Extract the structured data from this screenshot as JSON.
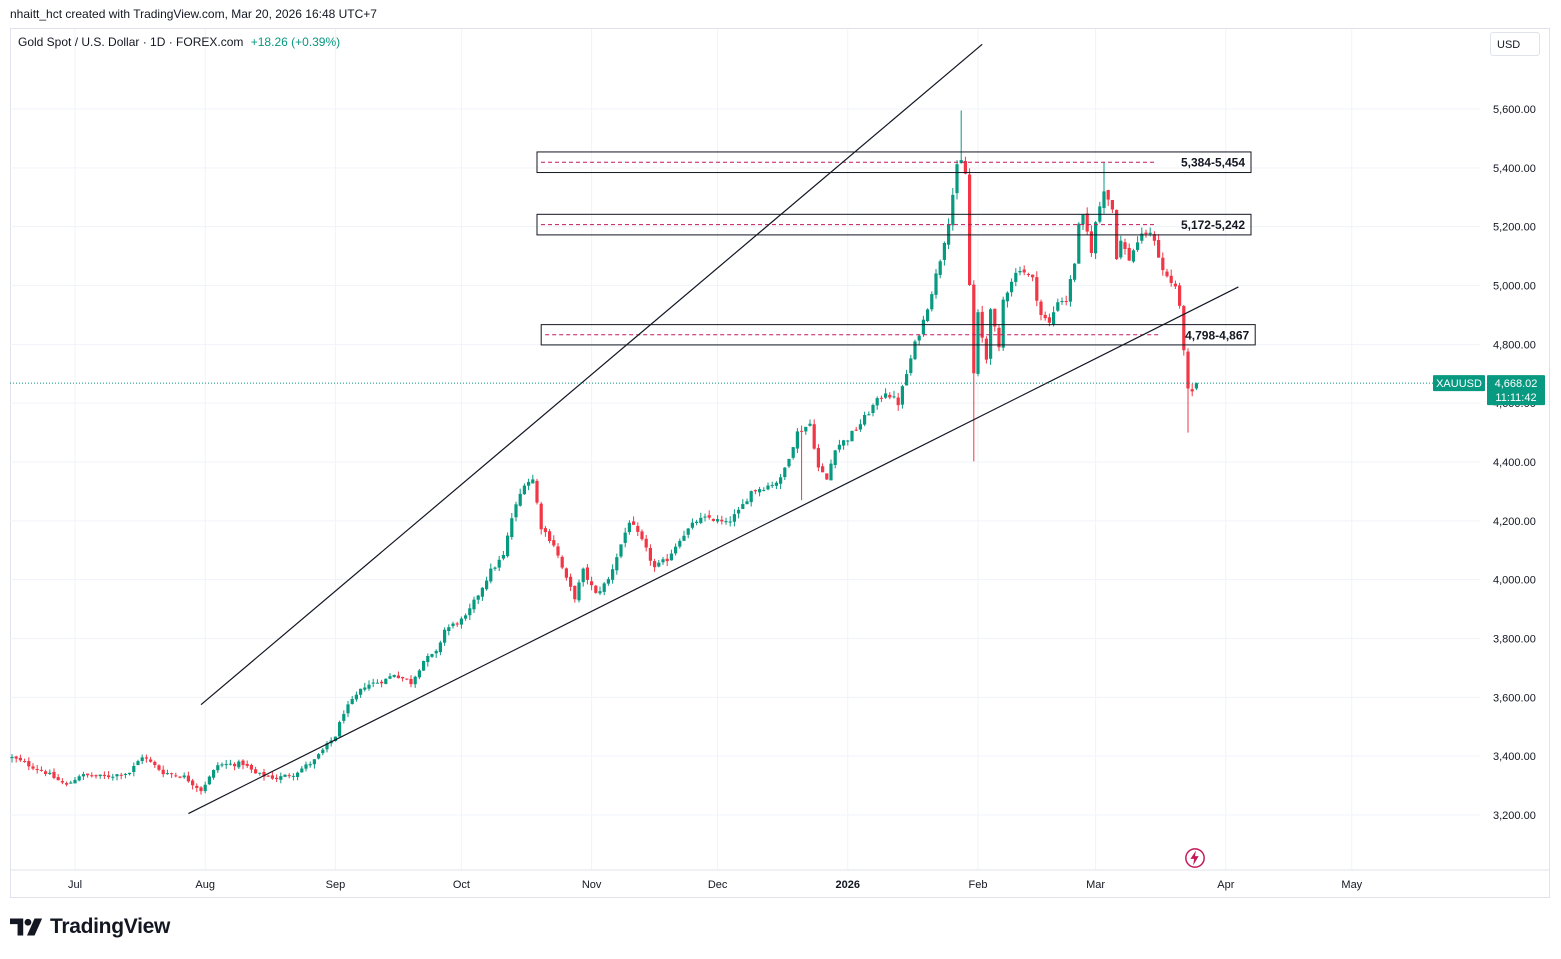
{
  "attribution": "nhaitt_hct created with TradingView.com, Mar 20, 2026 16:48 UTC+7",
  "legend": {
    "symbol_desc": "Gold Spot / U.S. Dollar · 1D · FOREX.com",
    "change": "+18.26 (+0.39%)"
  },
  "currency_label": "USD",
  "brand": {
    "name": "TradingView"
  },
  "icons": {
    "brand_mark": "tradingview-logo-icon",
    "bolt": "lightning-bolt-icon"
  },
  "colors": {
    "up": "#089981",
    "down": "#F23645",
    "grid": "#F0F3FA",
    "line": "#131722",
    "zone_dash": "#C2185B"
  },
  "chart_data": {
    "type": "candlestick",
    "title": "Gold Spot / U.S. Dollar · 1D · FOREX.com",
    "ylabel": "USD",
    "ylim": [
      3060,
      5830
    ],
    "y_ticks": [
      3200,
      3400,
      3600,
      3800,
      4000,
      4200,
      4400,
      4600,
      4800,
      5000,
      5200,
      5400,
      5600
    ],
    "y_tick_labels": [
      "3,200.00",
      "3,400.00",
      "3,600.00",
      "3,800.00",
      "4,000.00",
      "4,200.00",
      "4,400.00",
      "4,600.00",
      "4,800.00",
      "5,000.00",
      "5,200.00",
      "5,400.00",
      "5,600.00"
    ],
    "x_range_days": [
      0,
      336
    ],
    "x_ticks": [
      {
        "label": "Jul",
        "day": 15
      },
      {
        "label": "Aug",
        "day": 46
      },
      {
        "label": "Sep",
        "day": 77
      },
      {
        "label": "Oct",
        "day": 107
      },
      {
        "label": "Nov",
        "day": 138
      },
      {
        "label": "Dec",
        "day": 168
      },
      {
        "label": "2026",
        "day": 199,
        "bold": true
      },
      {
        "label": "Feb",
        "day": 230
      },
      {
        "label": "Mar",
        "day": 258
      },
      {
        "label": "Apr",
        "day": 289
      },
      {
        "label": "May",
        "day": 319
      }
    ],
    "anchors": [
      [
        0,
        3395
      ],
      [
        8,
        3345
      ],
      [
        13,
        3300
      ],
      [
        16,
        3335
      ],
      [
        22,
        3330
      ],
      [
        28,
        3345
      ],
      [
        31,
        3400
      ],
      [
        36,
        3345
      ],
      [
        41,
        3330
      ],
      [
        45,
        3285
      ],
      [
        49,
        3370
      ],
      [
        55,
        3375
      ],
      [
        58,
        3340
      ],
      [
        63,
        3325
      ],
      [
        67,
        3340
      ],
      [
        72,
        3385
      ],
      [
        77,
        3470
      ],
      [
        79,
        3550
      ],
      [
        84,
        3640
      ],
      [
        89,
        3660
      ],
      [
        91,
        3680
      ],
      [
        95,
        3650
      ],
      [
        98,
        3725
      ],
      [
        101,
        3750
      ],
      [
        103,
        3830
      ],
      [
        108,
        3870
      ],
      [
        111,
        3950
      ],
      [
        114,
        4030
      ],
      [
        117,
        4080
      ],
      [
        119,
        4210
      ],
      [
        122,
        4330
      ],
      [
        124,
        4340
      ],
      [
        126,
        4180
      ],
      [
        129,
        4120
      ],
      [
        132,
        4000
      ],
      [
        134,
        3940
      ],
      [
        136,
        4030
      ],
      [
        139,
        3950
      ],
      [
        142,
        4000
      ],
      [
        145,
        4120
      ],
      [
        147,
        4200
      ],
      [
        150,
        4130
      ],
      [
        153,
        4040
      ],
      [
        156,
        4070
      ],
      [
        159,
        4140
      ],
      [
        163,
        4200
      ],
      [
        166,
        4210
      ],
      [
        170,
        4190
      ],
      [
        173,
        4230
      ],
      [
        176,
        4300
      ],
      [
        180,
        4320
      ],
      [
        183,
        4340
      ],
      [
        187,
        4500
      ],
      [
        190,
        4530
      ],
      [
        192,
        4380
      ],
      [
        194,
        4340
      ],
      [
        196,
        4450
      ],
      [
        199,
        4480
      ],
      [
        202,
        4530
      ],
      [
        205,
        4590
      ],
      [
        208,
        4640
      ],
      [
        211,
        4600
      ],
      [
        213,
        4700
      ],
      [
        215,
        4800
      ],
      [
        217,
        4880
      ],
      [
        219,
        4980
      ],
      [
        221,
        5090
      ],
      [
        223,
        5220
      ],
      [
        225,
        5400
      ],
      [
        226,
        5420
      ],
      [
        227,
        5380
      ],
      [
        228,
        5000
      ],
      [
        229,
        4700
      ],
      [
        230,
        4900
      ],
      [
        231,
        4820
      ],
      [
        232,
        4750
      ],
      [
        233,
        4930
      ],
      [
        234,
        4850
      ],
      [
        235,
        4780
      ],
      [
        236,
        4950
      ],
      [
        238,
        5020
      ],
      [
        240,
        5060
      ],
      [
        243,
        5020
      ],
      [
        245,
        4900
      ],
      [
        247,
        4870
      ],
      [
        249,
        4950
      ],
      [
        251,
        4950
      ],
      [
        253,
        5080
      ],
      [
        254,
        5200
      ],
      [
        255,
        5230
      ],
      [
        256,
        5180
      ],
      [
        257,
        5120
      ],
      [
        258,
        5210
      ],
      [
        259,
        5270
      ],
      [
        260,
        5330
      ],
      [
        262,
        5260
      ],
      [
        263,
        5100
      ],
      [
        264,
        5150
      ],
      [
        266,
        5090
      ],
      [
        268,
        5150
      ],
      [
        270,
        5180
      ],
      [
        272,
        5160
      ],
      [
        273,
        5100
      ],
      [
        274,
        5050
      ],
      [
        276,
        5010
      ],
      [
        277,
        5000
      ],
      [
        278,
        4920
      ],
      [
        279,
        4780
      ],
      [
        280,
        4650
      ],
      [
        281,
        4640
      ],
      [
        282,
        4668
      ]
    ],
    "last_price": {
      "label": "XAUUSD",
      "value": 4668.02,
      "value_label": "4,668.02",
      "countdown": "11:11:42"
    },
    "trendlines": [
      {
        "name": "upper-channel-line",
        "p1": {
          "day": 45,
          "price": 3575
        },
        "p2": {
          "day": 231,
          "price": 5820
        }
      },
      {
        "name": "lower-support-line",
        "p1": {
          "day": 42,
          "price": 3205
        },
        "p2": {
          "day": 292,
          "price": 4995
        }
      }
    ],
    "zones": [
      {
        "label": "5,384-5,454",
        "low": 5384,
        "high": 5454,
        "start_day": 125,
        "end_day": 295
      },
      {
        "label": "5,172-5,242",
        "low": 5172,
        "high": 5242,
        "start_day": 125,
        "end_day": 295
      },
      {
        "label": "4,798-4,867",
        "low": 4798,
        "high": 4867,
        "start_day": 126,
        "end_day": 296
      }
    ],
    "price_line": 4668.02
  }
}
